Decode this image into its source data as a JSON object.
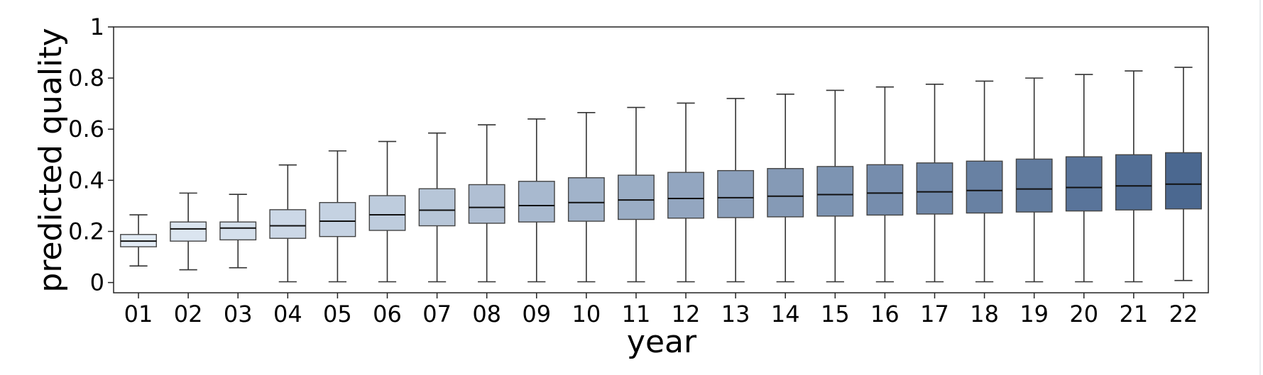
{
  "chart_data": {
    "type": "box",
    "title": "",
    "xlabel": "year",
    "ylabel": "predicted quality",
    "ylim": [
      -0.04,
      1.0
    ],
    "yticks": [
      0,
      0.2,
      0.4,
      0.6,
      0.8,
      1
    ],
    "ytick_labels": [
      "0",
      "0.2",
      "0.4",
      "0.6",
      "0.8",
      "1"
    ],
    "grid": false,
    "legend": "none",
    "colors": {
      "box_fill_start": "#e2ebf5",
      "box_fill_end": "#4b6890",
      "edge": "#444444",
      "median": "#111111"
    },
    "categories": [
      "01",
      "02",
      "03",
      "04",
      "05",
      "06",
      "07",
      "08",
      "09",
      "10",
      "11",
      "12",
      "13",
      "14",
      "15",
      "16",
      "17",
      "18",
      "19",
      "20",
      "21",
      "22"
    ],
    "boxes": [
      {
        "year": "01",
        "whislo": 0.065,
        "q1": 0.14,
        "med": 0.162,
        "q3": 0.188,
        "whishi": 0.265
      },
      {
        "year": "02",
        "whislo": 0.05,
        "q1": 0.162,
        "med": 0.21,
        "q3": 0.237,
        "whishi": 0.35
      },
      {
        "year": "03",
        "whislo": 0.058,
        "q1": 0.167,
        "med": 0.213,
        "q3": 0.237,
        "whishi": 0.345
      },
      {
        "year": "04",
        "whislo": 0.003,
        "q1": 0.173,
        "med": 0.222,
        "q3": 0.285,
        "whishi": 0.46
      },
      {
        "year": "05",
        "whislo": 0.003,
        "q1": 0.18,
        "med": 0.24,
        "q3": 0.313,
        "whishi": 0.515
      },
      {
        "year": "06",
        "whislo": 0.003,
        "q1": 0.204,
        "med": 0.265,
        "q3": 0.34,
        "whishi": 0.552
      },
      {
        "year": "07",
        "whislo": 0.003,
        "q1": 0.222,
        "med": 0.283,
        "q3": 0.367,
        "whishi": 0.585
      },
      {
        "year": "08",
        "whislo": 0.003,
        "q1": 0.232,
        "med": 0.294,
        "q3": 0.383,
        "whishi": 0.617
      },
      {
        "year": "09",
        "whislo": 0.003,
        "q1": 0.237,
        "med": 0.301,
        "q3": 0.396,
        "whishi": 0.64
      },
      {
        "year": "10",
        "whislo": 0.003,
        "q1": 0.24,
        "med": 0.313,
        "q3": 0.41,
        "whishi": 0.665
      },
      {
        "year": "11",
        "whislo": 0.003,
        "q1": 0.247,
        "med": 0.323,
        "q3": 0.42,
        "whishi": 0.685
      },
      {
        "year": "12",
        "whislo": 0.003,
        "q1": 0.252,
        "med": 0.329,
        "q3": 0.431,
        "whishi": 0.702
      },
      {
        "year": "13",
        "whislo": 0.003,
        "q1": 0.254,
        "med": 0.332,
        "q3": 0.438,
        "whishi": 0.72
      },
      {
        "year": "14",
        "whislo": 0.003,
        "q1": 0.257,
        "med": 0.338,
        "q3": 0.446,
        "whishi": 0.737
      },
      {
        "year": "15",
        "whislo": 0.003,
        "q1": 0.26,
        "med": 0.344,
        "q3": 0.454,
        "whishi": 0.752
      },
      {
        "year": "16",
        "whislo": 0.003,
        "q1": 0.264,
        "med": 0.35,
        "q3": 0.461,
        "whishi": 0.765
      },
      {
        "year": "17",
        "whislo": 0.003,
        "q1": 0.268,
        "med": 0.355,
        "q3": 0.468,
        "whishi": 0.776
      },
      {
        "year": "18",
        "whislo": 0.003,
        "q1": 0.272,
        "med": 0.36,
        "q3": 0.475,
        "whishi": 0.788
      },
      {
        "year": "19",
        "whislo": 0.003,
        "q1": 0.276,
        "med": 0.366,
        "q3": 0.483,
        "whishi": 0.8
      },
      {
        "year": "20",
        "whislo": 0.003,
        "q1": 0.28,
        "med": 0.372,
        "q3": 0.492,
        "whishi": 0.814
      },
      {
        "year": "21",
        "whislo": 0.003,
        "q1": 0.284,
        "med": 0.378,
        "q3": 0.5,
        "whishi": 0.828
      },
      {
        "year": "22",
        "whislo": 0.008,
        "q1": 0.288,
        "med": 0.385,
        "q3": 0.508,
        "whishi": 0.842
      }
    ]
  }
}
